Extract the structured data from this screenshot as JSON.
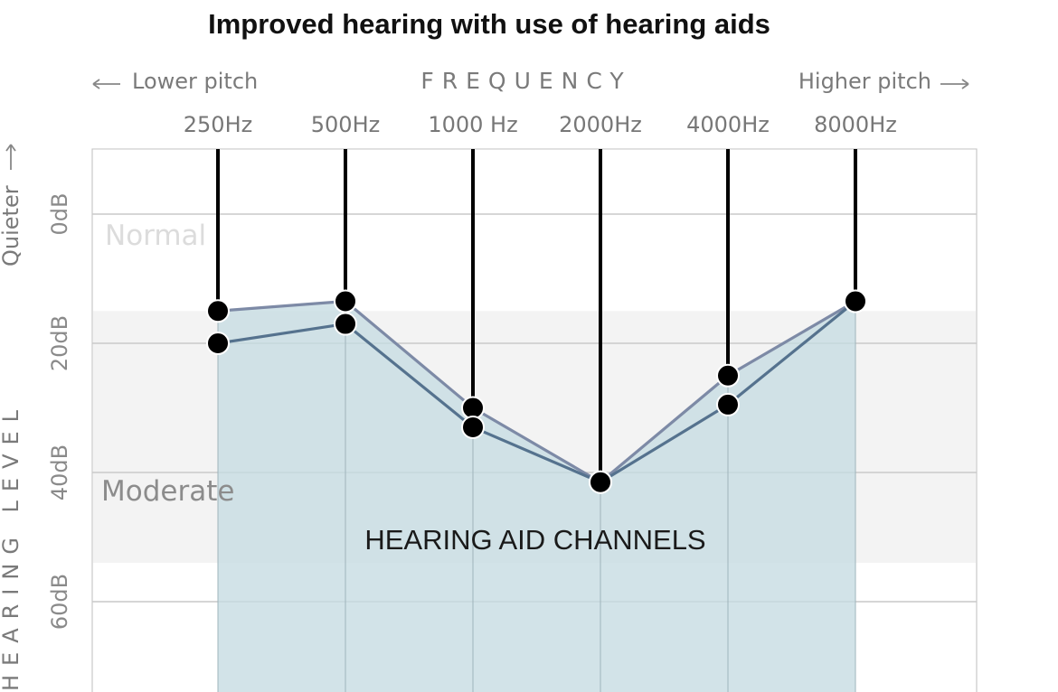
{
  "chart_data": {
    "type": "line",
    "title": "Improved hearing with use of hearing aids",
    "x_axis": {
      "label": "FREQUENCY",
      "left_hint": "Lower pitch",
      "right_hint": "Higher pitch",
      "categories": [
        "250Hz",
        "500Hz",
        "1000 Hz",
        "2000Hz",
        "4000Hz",
        "8000Hz"
      ]
    },
    "y_axis": {
      "label": "HEARING LEVEL",
      "direction_hint": "Quieter",
      "ticks": [
        {
          "value": 0,
          "label": "0dB"
        },
        {
          "value": 20,
          "label": "20dB"
        },
        {
          "value": 40,
          "label": "40dB"
        },
        {
          "value": 60,
          "label": "60dB"
        }
      ],
      "range": [
        -10,
        75
      ],
      "inverted": true
    },
    "bands": [
      {
        "label": "Normal",
        "from": -10,
        "to": 15
      },
      {
        "label": "Moderate",
        "from": 15,
        "to": 54
      }
    ],
    "annotation": {
      "label": "HEARING AID CHANNELS",
      "fill_color": "#c5dbe2"
    },
    "series": [
      {
        "values": [
          15,
          13.5,
          30,
          41.5,
          25,
          13.5
        ],
        "color": "#7d8aa6"
      },
      {
        "values": [
          20,
          17,
          33,
          41.5,
          29.5,
          13.5
        ],
        "color": "#55728e"
      }
    ],
    "grid": true
  }
}
